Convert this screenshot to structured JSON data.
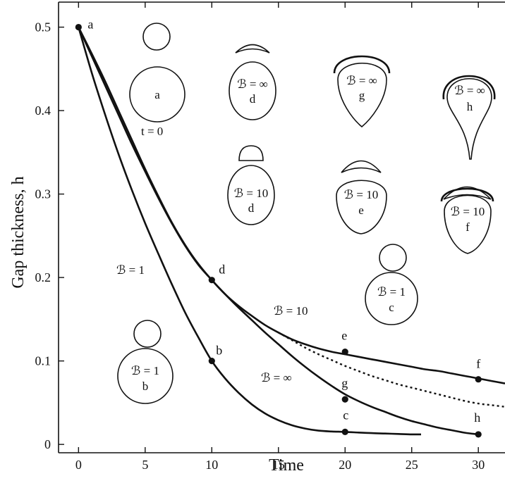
{
  "chart_data": {
    "type": "line",
    "title": "",
    "xlabel": "Time",
    "ylabel": "Gap thickness, h",
    "xlim": [
      -1.5,
      32
    ],
    "ylim": [
      -0.01,
      0.53
    ],
    "xticks": [
      0,
      5,
      10,
      15,
      20,
      25,
      30
    ],
    "yticks": [
      0,
      0.1,
      0.2,
      0.3,
      0.4,
      0.5
    ],
    "ytick_labels": [
      "0",
      "0.1",
      "0.2",
      "0.3",
      "0.4",
      "0.5"
    ],
    "grid": false,
    "legend": "none",
    "series": [
      {
        "style": "solid",
        "x": [
          0,
          1,
          2,
          3,
          4,
          5,
          6,
          7,
          8,
          9,
          10,
          11,
          12,
          13,
          14,
          15,
          16,
          17,
          18,
          19,
          20,
          21,
          22,
          23,
          24,
          25,
          25.7
        ],
        "y": [
          0.5,
          0.445,
          0.395,
          0.348,
          0.305,
          0.265,
          0.228,
          0.192,
          0.158,
          0.128,
          0.1,
          0.079,
          0.062,
          0.048,
          0.037,
          0.029,
          0.023,
          0.019,
          0.0165,
          0.0155,
          0.015,
          0.0142,
          0.0135,
          0.013,
          0.0125,
          0.012,
          0.012
        ]
      },
      {
        "style": "solid",
        "x": [
          0,
          1,
          2,
          3,
          4,
          5,
          6,
          7,
          8,
          9,
          10,
          11,
          12,
          13,
          14,
          15,
          16,
          17,
          18,
          19,
          20,
          21,
          22,
          23,
          24,
          25,
          26,
          27,
          28,
          29,
          30
        ],
        "y": [
          0.5,
          0.465,
          0.43,
          0.395,
          0.36,
          0.327,
          0.295,
          0.265,
          0.238,
          0.215,
          0.197,
          0.18,
          0.164,
          0.149,
          0.134,
          0.12,
          0.106,
          0.093,
          0.081,
          0.07,
          0.06,
          0.052,
          0.045,
          0.039,
          0.033,
          0.028,
          0.024,
          0.02,
          0.017,
          0.014,
          0.012
        ]
      },
      {
        "style": "solid",
        "x": [
          0,
          1,
          2,
          3,
          4,
          5,
          6,
          7,
          8,
          9,
          10,
          11,
          12,
          13,
          14,
          15,
          16,
          17,
          18,
          19,
          20,
          21,
          22,
          23,
          24,
          25,
          26,
          27,
          28,
          29,
          30,
          31,
          32
        ],
        "y": [
          0.5,
          0.468,
          0.435,
          0.4,
          0.365,
          0.33,
          0.297,
          0.266,
          0.239,
          0.216,
          0.197,
          0.18,
          0.166,
          0.154,
          0.143,
          0.134,
          0.126,
          0.12,
          0.115,
          0.111,
          0.108,
          0.105,
          0.102,
          0.099,
          0.096,
          0.093,
          0.09,
          0.088,
          0.085,
          0.082,
          0.079,
          0.076,
          0.073
        ]
      },
      {
        "style": "dashed",
        "x": [
          15,
          16,
          17,
          18,
          19,
          20,
          21,
          22,
          23,
          24,
          25,
          26,
          27,
          28,
          29,
          30,
          31,
          32
        ],
        "y": [
          0.134,
          0.125,
          0.116,
          0.108,
          0.101,
          0.094,
          0.088,
          0.082,
          0.077,
          0.072,
          0.068,
          0.064,
          0.06,
          0.056,
          0.052,
          0.049,
          0.047,
          0.045
        ]
      }
    ],
    "points": [
      {
        "label": "a",
        "x": 0,
        "y": 0.5
      },
      {
        "label": "b",
        "x": 10,
        "y": 0.1
      },
      {
        "label": "c",
        "x": 20,
        "y": 0.015
      },
      {
        "label": "d",
        "x": 10,
        "y": 0.197
      },
      {
        "label": "e",
        "x": 20,
        "y": 0.111
      },
      {
        "label": "f",
        "x": 30,
        "y": 0.078
      },
      {
        "label": "g",
        "x": 20,
        "y": 0.054
      },
      {
        "label": "h",
        "x": 30,
        "y": 0.012
      }
    ],
    "annotations": {
      "curve_b1": "ℬ = 1",
      "curve_b10": "ℬ = 10",
      "curve_binf": "ℬ = ∞",
      "t0": "t = 0"
    },
    "shapes": [
      {
        "bond": "",
        "letter": "a",
        "kind": "circles"
      },
      {
        "bond": "ℬ = ∞",
        "letter": "d",
        "kind": "cap"
      },
      {
        "bond": "ℬ = ∞",
        "letter": "g",
        "kind": "film-drop"
      },
      {
        "bond": "ℬ = ∞",
        "letter": "h",
        "kind": "film-teardrop"
      },
      {
        "bond": "ℬ = 10",
        "letter": "d",
        "kind": "cap"
      },
      {
        "bond": "ℬ = 10",
        "letter": "e",
        "kind": "cap-drop"
      },
      {
        "bond": "ℬ = 10",
        "letter": "f",
        "kind": "film-drop"
      },
      {
        "bond": "ℬ = 1",
        "letter": "c",
        "kind": "circles"
      },
      {
        "bond": "ℬ = 1",
        "letter": "b",
        "kind": "circles"
      }
    ]
  }
}
